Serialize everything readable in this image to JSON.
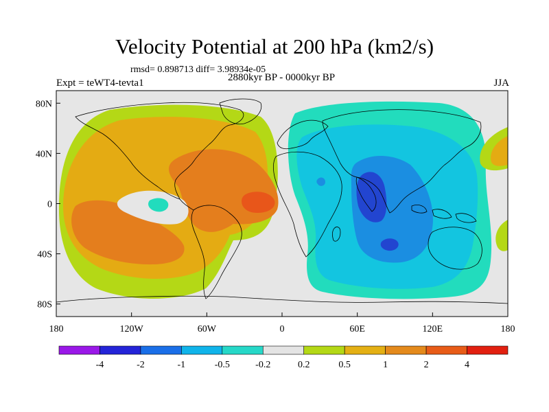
{
  "title": "Velocity Potential at 200 hPa (km2/s)",
  "stats_text": "rmsd= 0.898713 diff= 3.98934e-05",
  "left_subtitle": "Expt = teWT4-tevta1",
  "center_subtitle": "2880kyr BP - 0000kyr BP",
  "right_subtitle": "JJA",
  "colors": {
    "bg": "#e6e6e6",
    "lvl_pos_0_2": "#b4d816",
    "lvl_pos_0_5": "#e4ab13",
    "lvl_pos_1": "#e47e1d",
    "lvl_pos_2": "#e8561a",
    "lvl_neg_0_2": "#22dcbd",
    "lvl_neg_0_5": "#13c5e0",
    "lvl_neg_1": "#1b8ee1",
    "lvl_neg_2": "#2245d0",
    "coast": "#000000"
  },
  "axes": {
    "x_ticks": [
      {
        "label": "180",
        "lon": -180
      },
      {
        "label": "120W",
        "lon": -120
      },
      {
        "label": "60W",
        "lon": -60
      },
      {
        "label": "0",
        "lon": 0
      },
      {
        "label": "60E",
        "lon": 60
      },
      {
        "label": "120E",
        "lon": 120
      },
      {
        "label": "180",
        "lon": 180
      }
    ],
    "y_ticks": [
      {
        "label": "80N",
        "lat": 80
      },
      {
        "label": "40N",
        "lat": 40
      },
      {
        "label": "0",
        "lat": 0
      },
      {
        "label": "40S",
        "lat": -40
      },
      {
        "label": "80S",
        "lat": -80
      }
    ]
  },
  "colorbar": {
    "colors": [
      "#9a18e8",
      "#2424d8",
      "#1a6fe8",
      "#10b4ea",
      "#26d8c8",
      "#e4e4e4",
      "#b4d816",
      "#e4b014",
      "#e48a1c",
      "#e85c18",
      "#e22010"
    ],
    "labels": [
      "-4",
      "-2",
      "-1",
      "-0.5",
      "-0.2",
      "0.2",
      "0.5",
      "1",
      "2",
      "4"
    ]
  }
}
